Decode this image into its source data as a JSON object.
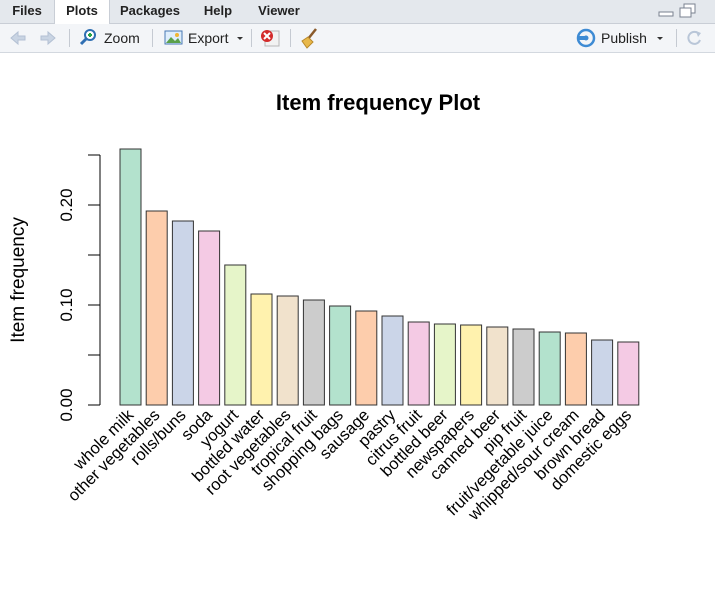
{
  "tabs": [
    {
      "label": "Files",
      "active": false
    },
    {
      "label": "Plots",
      "active": true
    },
    {
      "label": "Packages",
      "active": false
    },
    {
      "label": "Help",
      "active": false
    },
    {
      "label": "Viewer",
      "active": false
    }
  ],
  "toolbar": {
    "zoom_label": "Zoom",
    "export_label": "Export",
    "publish_label": "Publish"
  },
  "icons": {
    "back": "arrow-left-icon",
    "forward": "arrow-right-icon",
    "zoom": "magnifier-icon",
    "export": "picture-icon",
    "remove": "remove-plot-icon",
    "clear": "broom-icon",
    "publish": "publish-icon",
    "refresh": "refresh-icon",
    "minimize": "minimize-pane-icon",
    "maximize": "maximize-pane-icon"
  },
  "colors": {
    "palette": [
      "#b3e2cd",
      "#fdcdac",
      "#cbd5e8",
      "#f4cae4",
      "#e6f5c9",
      "#fff2ae",
      "#f1e2cc",
      "#cccccc"
    ]
  },
  "chart_data": {
    "type": "bar",
    "title": "Item frequency Plot",
    "xlabel": "",
    "ylabel": "Item frequency",
    "ylim": [
      0,
      0.25
    ],
    "yticks": [
      "0.00",
      "0.10",
      "0.20"
    ],
    "grid": false,
    "categories": [
      "whole milk",
      "other vegetables",
      "rolls/buns",
      "soda",
      "yogurt",
      "bottled water",
      "root vegetables",
      "tropical fruit",
      "shopping bags",
      "sausage",
      "pastry",
      "citrus fruit",
      "bottled beer",
      "newspapers",
      "canned beer",
      "pip fruit",
      "fruit/vegetable juice",
      "whipped/sour cream",
      "brown bread",
      "domestic eggs"
    ],
    "values": [
      0.256,
      0.194,
      0.184,
      0.174,
      0.14,
      0.111,
      0.109,
      0.105,
      0.099,
      0.094,
      0.089,
      0.083,
      0.081,
      0.08,
      0.078,
      0.076,
      0.073,
      0.072,
      0.065,
      0.063
    ]
  }
}
